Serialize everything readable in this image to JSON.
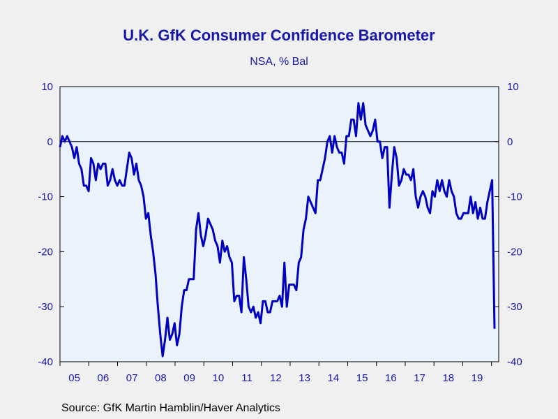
{
  "chart_data": {
    "type": "line",
    "title": "U.K. GfK Consumer Confidence Barometer",
    "subtitle": "NSA, % Bal",
    "source": "Source:  GfK Martin Hamblin/Haver Analytics",
    "ylim": [
      -40,
      10
    ],
    "yticks": [
      10,
      0,
      -10,
      -20,
      -30,
      -40
    ],
    "xlabels": [
      "05",
      "06",
      "07",
      "08",
      "09",
      "10",
      "11",
      "12",
      "13",
      "14",
      "15",
      "16",
      "17",
      "18",
      "19"
    ],
    "x_start": "2005-01",
    "x_end": "2020-04",
    "grid": false,
    "zero_line": true,
    "colors": {
      "line": "#0000c0",
      "text": "#1818a8",
      "plot_bg": "#eaf2fc"
    },
    "series": [
      {
        "values": [
          -1,
          1,
          0,
          1,
          0,
          -1,
          -3,
          -1,
          -4,
          -5,
          -8,
          -8,
          -9,
          -3,
          -4,
          -7,
          -4,
          -5,
          -4,
          -4,
          -8,
          -7,
          -5,
          -7,
          -8,
          -7,
          -8,
          -8,
          -5,
          -2,
          -3,
          -6,
          -4,
          -7,
          -8,
          -10,
          -14,
          -13,
          -17,
          -20,
          -24,
          -30,
          -35,
          -39,
          -36,
          -32,
          -36,
          -35,
          -33,
          -37,
          -35,
          -30,
          -27,
          -27,
          -25,
          -25,
          -25,
          -16,
          -13,
          -17,
          -19,
          -17,
          -14,
          -15,
          -16,
          -18,
          -19,
          -22,
          -18,
          -20,
          -19,
          -21,
          -22,
          -29,
          -28,
          -28,
          -31,
          -21,
          -25,
          -30,
          -31,
          -30,
          -32,
          -31,
          -33,
          -29,
          -29,
          -31,
          -31,
          -29,
          -29,
          -29,
          -28,
          -30,
          -22,
          -30,
          -26,
          -26,
          -26,
          -27,
          -22,
          -21,
          -16,
          -14,
          -10,
          -11,
          -12,
          -13,
          -7,
          -7,
          -5,
          -3,
          0,
          1,
          -2,
          1,
          -1,
          -2,
          -2,
          -4,
          1,
          1,
          4,
          4,
          1,
          7,
          4,
          7,
          3,
          2,
          1,
          2,
          4,
          0,
          0,
          -3,
          -1,
          -1,
          -12,
          -6,
          -1,
          -3,
          -8,
          -7,
          -5,
          -6,
          -6,
          -7,
          -5,
          -10,
          -12,
          -10,
          -9,
          -10,
          -12,
          -13,
          -9,
          -10,
          -7,
          -9,
          -7,
          -9,
          -10,
          -7,
          -9,
          -10,
          -13,
          -14,
          -14,
          -13,
          -13,
          -13,
          -10,
          -13,
          -11,
          -14,
          -12,
          -14,
          -14,
          -11,
          -9,
          -7,
          -34
        ]
      }
    ]
  }
}
